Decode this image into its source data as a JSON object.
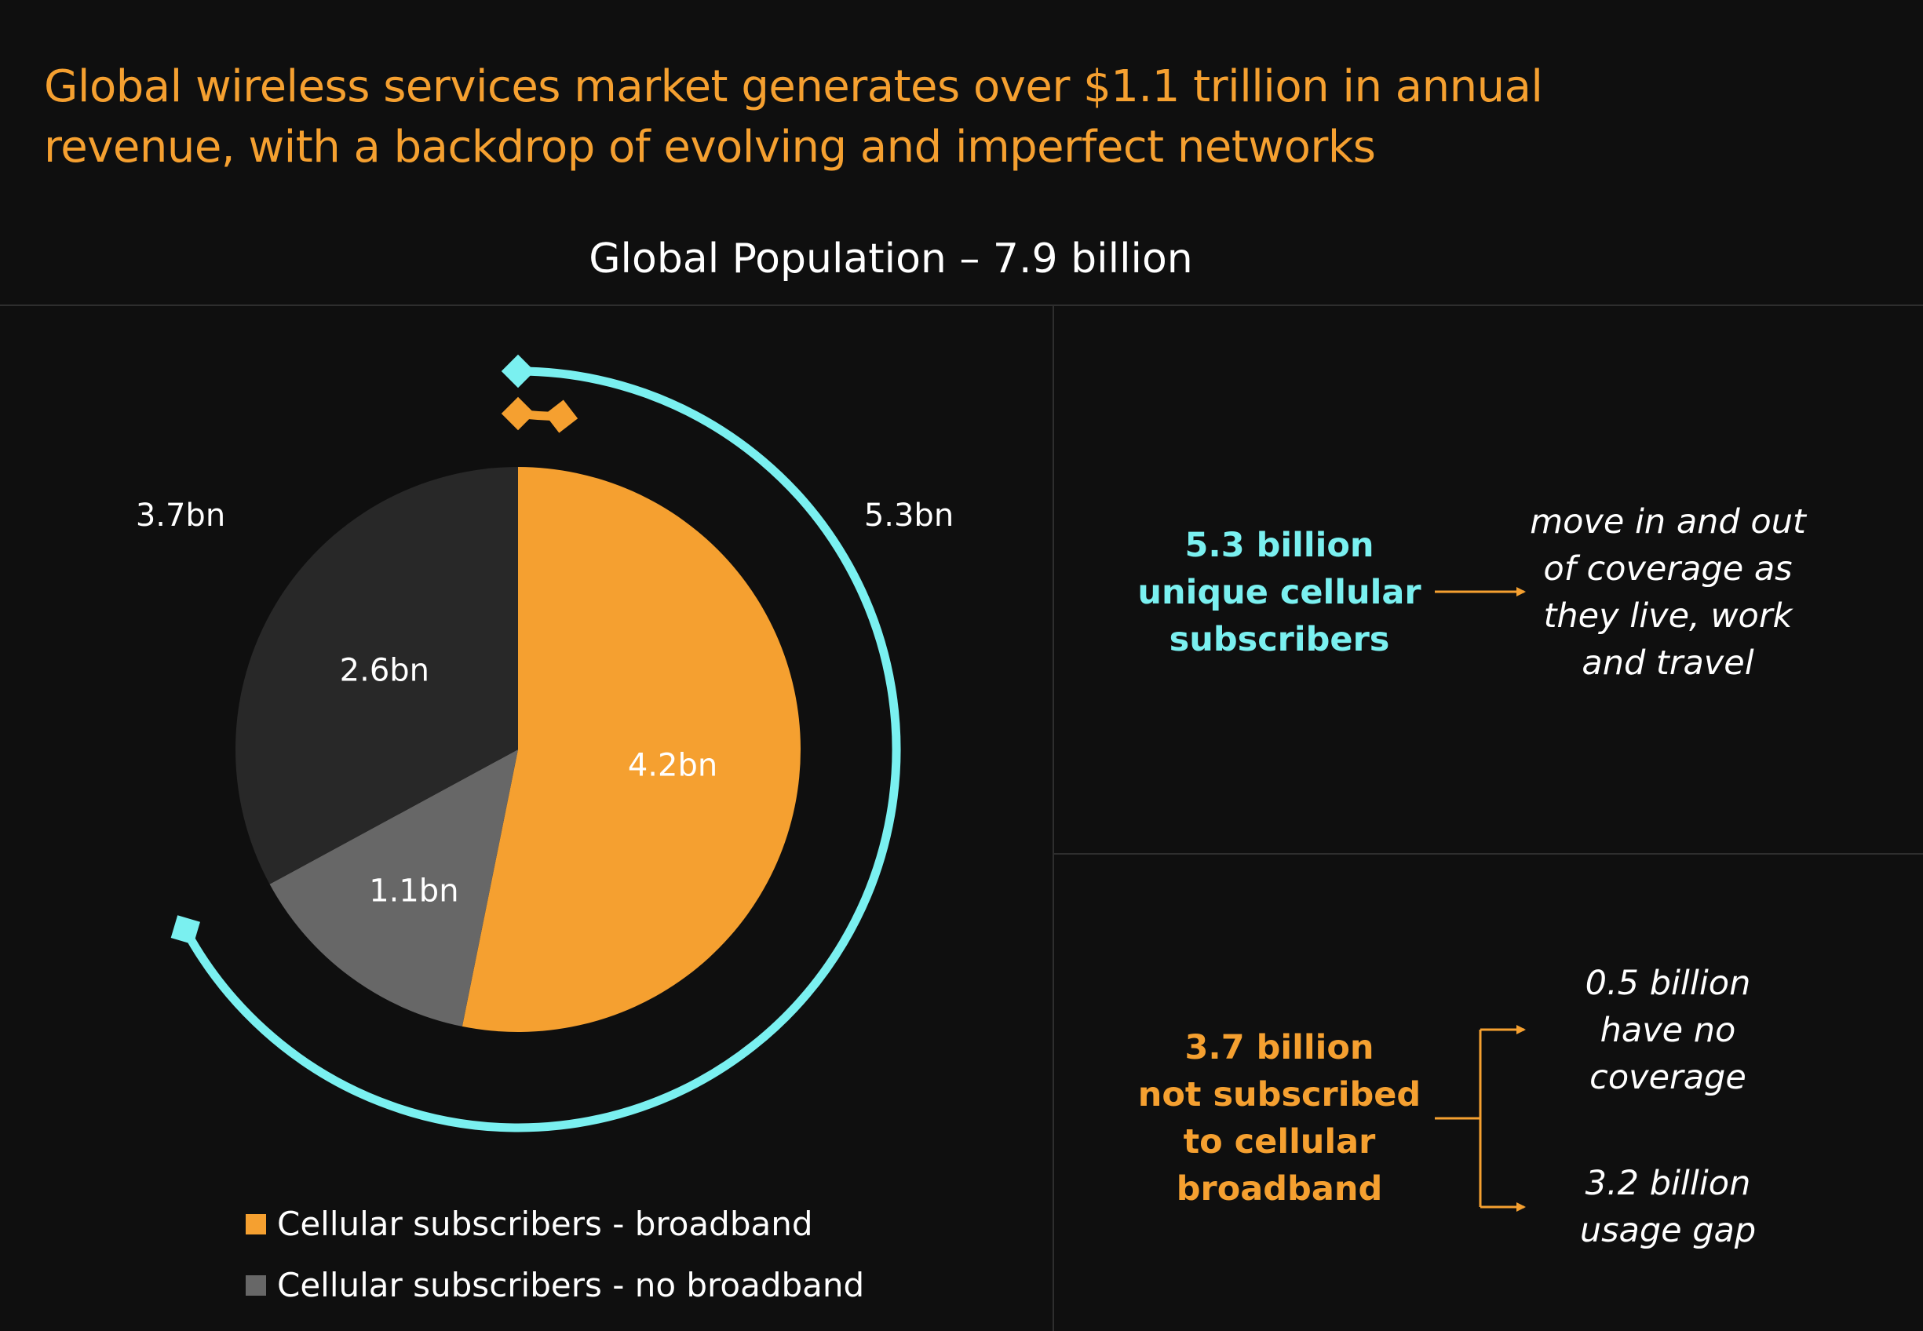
{
  "title": "Global wireless services market generates over $1.1 trillion in annual revenue, with a backdrop of evolving and imperfect networks",
  "colors": {
    "background": "#0f0f0f",
    "orange": "#f5a030",
    "cyan": "#7af0f0",
    "dark_grey": "#282828",
    "mid_grey": "#676767",
    "white": "#ffffff"
  },
  "chart_data": {
    "type": "pie",
    "title": "Global Population – 7.9 billion",
    "slices": [
      {
        "label": "4.2bn",
        "value": 4.2,
        "color": "#f5a030"
      },
      {
        "label": "1.1bn",
        "value": 1.1,
        "color": "#676767"
      },
      {
        "label": "2.6bn",
        "value": 2.6,
        "color": "#282828"
      }
    ],
    "arcs": [
      {
        "label": "5.3bn",
        "value": 5.3,
        "color": "#7af0f0"
      },
      {
        "label": "3.7bn",
        "value": 3.7,
        "color": "#f5a030"
      }
    ],
    "legend": [
      {
        "label": "Cellular subscribers - broadband",
        "color": "#f5a030"
      },
      {
        "label": "Cellular subscribers - no broadband",
        "color": "#676767"
      }
    ]
  },
  "callouts": {
    "top": {
      "heading": "5.3 billion\nunique cellular\nsubscribers",
      "detail": "move in and out\nof coverage as\nthey live, work\nand travel"
    },
    "bottom": {
      "heading": "3.7 billion\nnot subscribed\nto cellular\nbroadband",
      "detail_1": "0.5 billion\nhave no\ncoverage",
      "detail_2": "3.2 billion\nusage gap"
    }
  }
}
